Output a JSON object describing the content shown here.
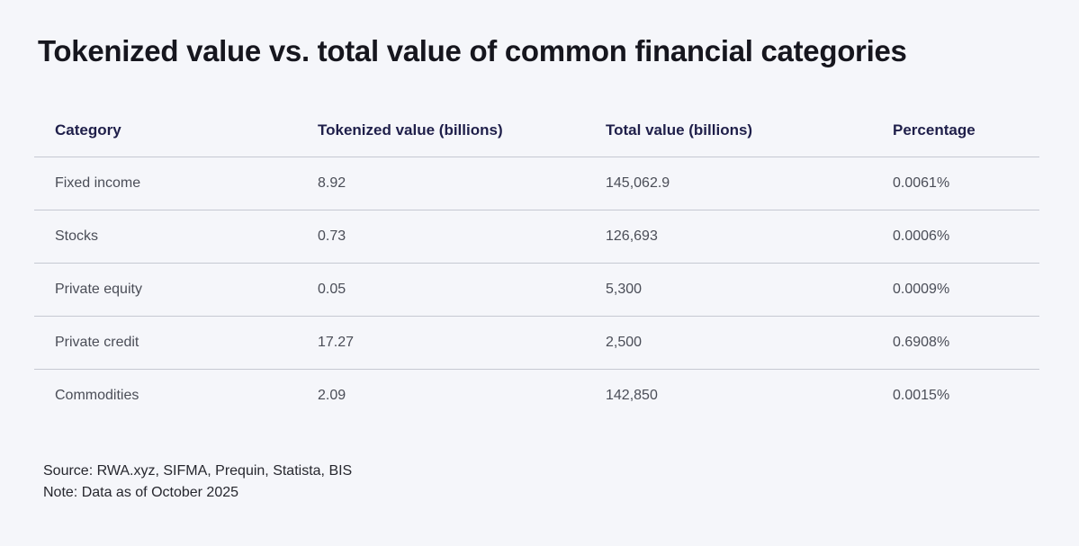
{
  "title": "Tokenized value vs. total value of common financial categories",
  "table": {
    "headers": [
      "Category",
      "Tokenized value (billions)",
      "Total value (billions)",
      "Percentage"
    ],
    "rows": [
      [
        "Fixed income",
        "8.92",
        "145,062.9",
        "0.0061%"
      ],
      [
        "Stocks",
        "0.73",
        "126,693",
        "0.0006%"
      ],
      [
        "Private equity",
        "0.05",
        "5,300",
        "0.0009%"
      ],
      [
        "Private credit",
        "17.27",
        "2,500",
        "0.6908%"
      ],
      [
        "Commodities",
        "2.09",
        "142,850",
        "0.0015%"
      ]
    ]
  },
  "footer": {
    "source": "Source: RWA.xyz, SIFMA, Prequin, Statista, BIS",
    "note": "Note: Data as of October 2025"
  }
}
